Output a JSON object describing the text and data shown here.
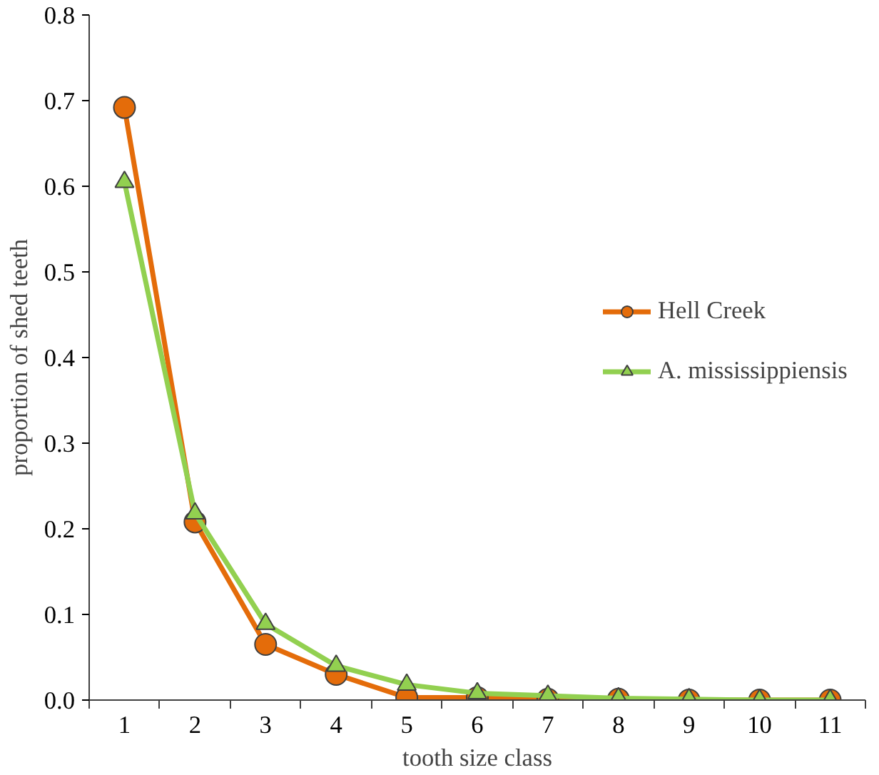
{
  "chart_data": {
    "type": "line",
    "xlabel": "tooth size class",
    "ylabel": "proportion of shed teeth",
    "categories": [
      "1",
      "2",
      "3",
      "4",
      "5",
      "6",
      "7",
      "8",
      "9",
      "10",
      "11"
    ],
    "series": [
      {
        "name": "Hell Creek",
        "color": "#e46c0a",
        "marker": "circle",
        "values": [
          0.692,
          0.208,
          0.065,
          0.03,
          0.003,
          0.003,
          0.001,
          0.001,
          0.0,
          0.0,
          0.0
        ]
      },
      {
        "name": "A. mississippiensis",
        "color": "#92d050",
        "marker": "triangle",
        "values": [
          0.605,
          0.218,
          0.089,
          0.04,
          0.018,
          0.008,
          0.005,
          0.002,
          0.001,
          0.0,
          0.0
        ]
      }
    ],
    "ylim": [
      0,
      0.8
    ],
    "yticks": [
      {
        "value": 0,
        "label": "0.0"
      },
      {
        "value": 0.1,
        "label": "0.1"
      },
      {
        "value": 0.2,
        "label": "0.2"
      },
      {
        "value": 0.3,
        "label": "0.3"
      },
      {
        "value": 0.4,
        "label": "0.4"
      },
      {
        "value": 0.5,
        "label": "0.5"
      },
      {
        "value": 0.6,
        "label": "0.6"
      },
      {
        "value": 0.7,
        "label": "0.7"
      },
      {
        "value": 0.8,
        "label": "0.8"
      }
    ],
    "grid": false,
    "legend": "right",
    "line_style": "solid"
  }
}
